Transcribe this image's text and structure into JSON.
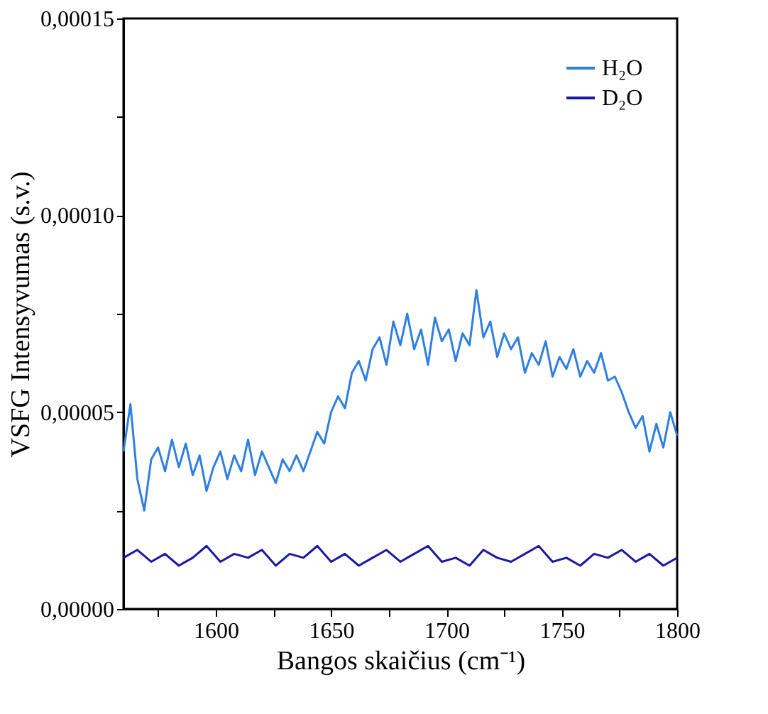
{
  "chart_data": {
    "type": "line",
    "xlabel": "Bangos skaičius (cm⁻¹)",
    "ylabel": "VSFG Intensyvumas (s.v.)",
    "xlim": [
      1560,
      1800
    ],
    "xticks": [
      {
        "value": 1575,
        "label": null
      },
      1600,
      {
        "value": 1625,
        "label": null
      },
      1650,
      {
        "value": 1675,
        "label": null
      },
      1700,
      {
        "value": 1725,
        "label": null
      },
      1750,
      {
        "value": 1775,
        "label": null
      },
      1800
    ],
    "ylim": [
      0,
      0.00015
    ],
    "yticks": [
      {
        "value": 0,
        "label": "0,00000"
      },
      {
        "value": 2.5e-05,
        "label": null
      },
      {
        "value": 5e-05,
        "label": "0,00005"
      },
      {
        "value": 7.5e-05,
        "label": null
      },
      {
        "value": 0.0001,
        "label": "0,00010"
      },
      {
        "value": 0.000125,
        "label": null
      },
      {
        "value": 0.00015,
        "label": "0,00015"
      }
    ],
    "grid": false,
    "legend": "top right",
    "line_style": "solid",
    "marker": "none",
    "series": [
      {
        "name": "H₂O",
        "color": "#2f7fe0",
        "x": [
          1560,
          1563,
          1566,
          1569,
          1572,
          1575,
          1578,
          1581,
          1584,
          1587,
          1590,
          1593,
          1596,
          1599,
          1602,
          1605,
          1608,
          1611,
          1614,
          1617,
          1620,
          1623,
          1626,
          1629,
          1632,
          1635,
          1638,
          1641,
          1644,
          1647,
          1650,
          1653,
          1656,
          1659,
          1662,
          1665,
          1668,
          1671,
          1674,
          1677,
          1680,
          1683,
          1686,
          1689,
          1692,
          1695,
          1698,
          1701,
          1704,
          1707,
          1710,
          1713,
          1716,
          1719,
          1722,
          1725,
          1728,
          1731,
          1734,
          1737,
          1740,
          1743,
          1746,
          1749,
          1752,
          1755,
          1758,
          1761,
          1764,
          1767,
          1770,
          1773,
          1776,
          1779,
          1782,
          1785,
          1788,
          1791,
          1794,
          1797,
          1800
        ],
        "values": [
          4e-05,
          5.2e-05,
          3.3e-05,
          2.5e-05,
          3.8e-05,
          4.1e-05,
          3.5e-05,
          4.3e-05,
          3.6e-05,
          4.2e-05,
          3.4e-05,
          3.9e-05,
          3e-05,
          3.6e-05,
          4e-05,
          3.3e-05,
          3.9e-05,
          3.5e-05,
          4.3e-05,
          3.4e-05,
          4e-05,
          3.6e-05,
          3.2e-05,
          3.8e-05,
          3.5e-05,
          3.9e-05,
          3.5e-05,
          4e-05,
          4.5e-05,
          4.2e-05,
          5e-05,
          5.4e-05,
          5.1e-05,
          6e-05,
          6.3e-05,
          5.8e-05,
          6.6e-05,
          6.9e-05,
          6.2e-05,
          7.3e-05,
          6.7e-05,
          7.5e-05,
          6.6e-05,
          7.1e-05,
          6.2e-05,
          7.4e-05,
          6.8e-05,
          7.1e-05,
          6.3e-05,
          7e-05,
          6.7e-05,
          8.1e-05,
          6.9e-05,
          7.3e-05,
          6.4e-05,
          7e-05,
          6.6e-05,
          6.9e-05,
          6e-05,
          6.5e-05,
          6.2e-05,
          6.8e-05,
          5.9e-05,
          6.4e-05,
          6.1e-05,
          6.6e-05,
          5.9e-05,
          6.3e-05,
          6e-05,
          6.5e-05,
          5.8e-05,
          5.9e-05,
          5.5e-05,
          5e-05,
          4.6e-05,
          4.9e-05,
          4e-05,
          4.7e-05,
          4.1e-05,
          5e-05,
          4.4e-05
        ]
      },
      {
        "name": "D₂O",
        "color": "#1a1aa0",
        "x": [
          1560,
          1566,
          1572,
          1578,
          1584,
          1590,
          1596,
          1602,
          1608,
          1614,
          1620,
          1626,
          1632,
          1638,
          1644,
          1650,
          1656,
          1662,
          1668,
          1674,
          1680,
          1686,
          1692,
          1698,
          1704,
          1710,
          1716,
          1722,
          1728,
          1734,
          1740,
          1746,
          1752,
          1758,
          1764,
          1770,
          1776,
          1782,
          1788,
          1794,
          1800
        ],
        "values": [
          1.3e-05,
          1.5e-05,
          1.2e-05,
          1.4e-05,
          1.1e-05,
          1.3e-05,
          1.6e-05,
          1.2e-05,
          1.4e-05,
          1.3e-05,
          1.5e-05,
          1.1e-05,
          1.4e-05,
          1.3e-05,
          1.6e-05,
          1.2e-05,
          1.4e-05,
          1.1e-05,
          1.3e-05,
          1.5e-05,
          1.2e-05,
          1.4e-05,
          1.6e-05,
          1.2e-05,
          1.3e-05,
          1.1e-05,
          1.5e-05,
          1.3e-05,
          1.2e-05,
          1.4e-05,
          1.6e-05,
          1.2e-05,
          1.3e-05,
          1.1e-05,
          1.4e-05,
          1.3e-05,
          1.5e-05,
          1.2e-05,
          1.4e-05,
          1.1e-05,
          1.3e-05
        ]
      }
    ]
  }
}
